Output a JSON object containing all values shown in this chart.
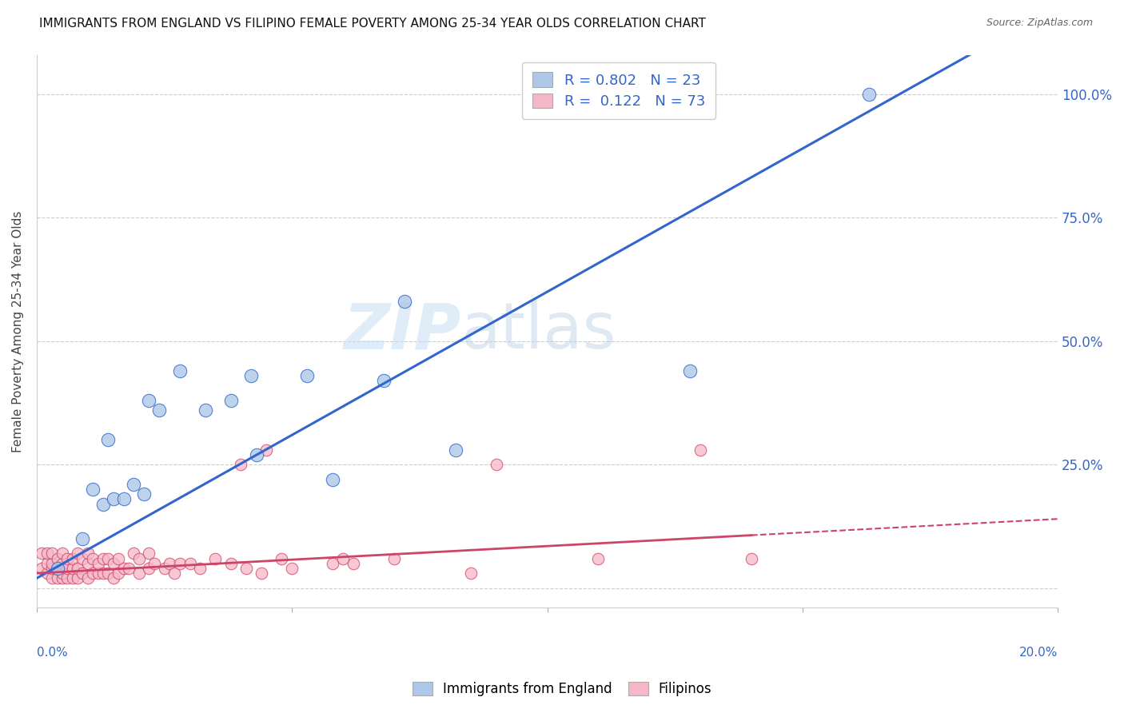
{
  "title": "IMMIGRANTS FROM ENGLAND VS FILIPINO FEMALE POVERTY AMONG 25-34 YEAR OLDS CORRELATION CHART",
  "source": "Source: ZipAtlas.com",
  "ylabel": "Female Poverty Among 25-34 Year Olds",
  "ytick_labels": [
    "",
    "25.0%",
    "50.0%",
    "75.0%",
    "100.0%"
  ],
  "ytick_values": [
    0.0,
    0.25,
    0.5,
    0.75,
    1.0
  ],
  "xlim": [
    0.0,
    0.2
  ],
  "ylim": [
    -0.04,
    1.08
  ],
  "england_color": "#adc8e8",
  "england_line_color": "#3366cc",
  "filipino_color": "#f5b8c8",
  "filipino_line_color": "#cc4466",
  "england_R": 0.802,
  "england_N": 23,
  "filipino_R": 0.122,
  "filipino_N": 73,
  "watermark_zip": "ZIP",
  "watermark_atlas": "atlas",
  "england_x": [
    0.004,
    0.009,
    0.011,
    0.013,
    0.014,
    0.015,
    0.017,
    0.019,
    0.021,
    0.022,
    0.024,
    0.028,
    0.033,
    0.038,
    0.042,
    0.043,
    0.053,
    0.058,
    0.068,
    0.072,
    0.082,
    0.128,
    0.163
  ],
  "england_y": [
    0.04,
    0.1,
    0.2,
    0.17,
    0.3,
    0.18,
    0.18,
    0.21,
    0.19,
    0.38,
    0.36,
    0.44,
    0.36,
    0.38,
    0.43,
    0.27,
    0.43,
    0.22,
    0.42,
    0.58,
    0.28,
    0.44,
    1.0
  ],
  "filipino_x": [
    0.001,
    0.001,
    0.002,
    0.002,
    0.002,
    0.003,
    0.003,
    0.003,
    0.003,
    0.004,
    0.004,
    0.004,
    0.005,
    0.005,
    0.005,
    0.005,
    0.006,
    0.006,
    0.006,
    0.007,
    0.007,
    0.007,
    0.008,
    0.008,
    0.008,
    0.009,
    0.009,
    0.01,
    0.01,
    0.01,
    0.011,
    0.011,
    0.012,
    0.012,
    0.013,
    0.013,
    0.014,
    0.014,
    0.015,
    0.015,
    0.016,
    0.016,
    0.017,
    0.018,
    0.019,
    0.02,
    0.02,
    0.022,
    0.022,
    0.023,
    0.025,
    0.026,
    0.027,
    0.028,
    0.03,
    0.032,
    0.035,
    0.038,
    0.04,
    0.041,
    0.044,
    0.048,
    0.05,
    0.058,
    0.062,
    0.07,
    0.085,
    0.09,
    0.11,
    0.13,
    0.14,
    0.045,
    0.06
  ],
  "filipino_y": [
    0.04,
    0.07,
    0.03,
    0.05,
    0.07,
    0.02,
    0.04,
    0.05,
    0.07,
    0.02,
    0.04,
    0.06,
    0.02,
    0.03,
    0.05,
    0.07,
    0.02,
    0.04,
    0.06,
    0.02,
    0.04,
    0.06,
    0.02,
    0.04,
    0.07,
    0.03,
    0.06,
    0.02,
    0.05,
    0.07,
    0.03,
    0.06,
    0.03,
    0.05,
    0.03,
    0.06,
    0.03,
    0.06,
    0.02,
    0.05,
    0.03,
    0.06,
    0.04,
    0.04,
    0.07,
    0.03,
    0.06,
    0.04,
    0.07,
    0.05,
    0.04,
    0.05,
    0.03,
    0.05,
    0.05,
    0.04,
    0.06,
    0.05,
    0.25,
    0.04,
    0.03,
    0.06,
    0.04,
    0.05,
    0.05,
    0.06,
    0.03,
    0.25,
    0.06,
    0.28,
    0.06,
    0.28,
    0.06
  ],
  "background_color": "#ffffff",
  "grid_color": "#cccccc",
  "eng_line_intercept": 0.02,
  "eng_line_slope": 5.8,
  "fil_line_intercept": 0.03,
  "fil_line_slope": 0.55
}
